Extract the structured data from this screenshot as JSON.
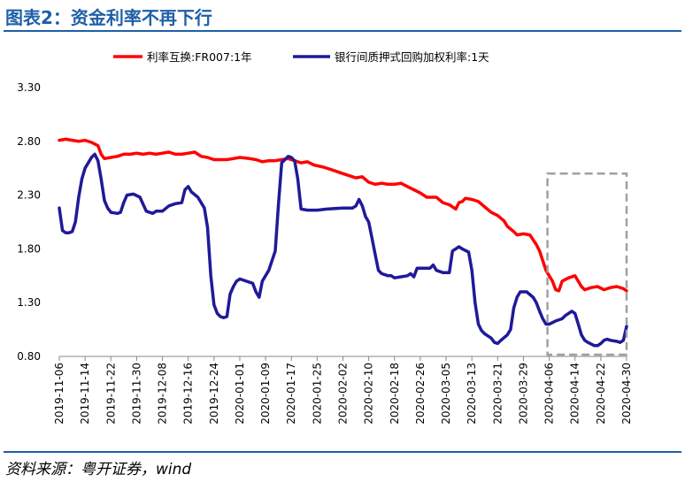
{
  "figure": {
    "title": "图表2：资金利率不再下行",
    "source": "资料来源：粤开证券，wind"
  },
  "chart_data": {
    "type": "line",
    "title": "",
    "xlabel": "",
    "ylabel": "",
    "ylim": [
      0.8,
      3.3
    ],
    "yticks": [
      "3.30",
      "2.80",
      "2.30",
      "1.80",
      "1.30",
      "0.80"
    ],
    "xticks": [
      "2019-11-06",
      "2019-11-14",
      "2019-11-22",
      "2019-11-30",
      "2019-12-08",
      "2019-12-16",
      "2019-12-24",
      "2020-01-01",
      "2020-01-09",
      "2020-01-17",
      "2020-01-25",
      "2020-02-02",
      "2020-02-10",
      "2020-02-18",
      "2020-02-26",
      "2020-03-05",
      "2020-03-13",
      "2020-03-21",
      "2020-03-29",
      "2020-04-06",
      "2020-04-14",
      "2020-04-22",
      "2020-04-30"
    ],
    "legend_position": "top",
    "highlight": {
      "from": "2020-04-06",
      "to": "2020-04-30",
      "ymin": 0.8,
      "ymax": 2.5,
      "style": "dashed-box"
    },
    "series": [
      {
        "name": "利率互换:FR007:1年",
        "color": "#ff0000",
        "points": [
          [
            "2019-11-06",
            2.81
          ],
          [
            "2019-11-08",
            2.82
          ],
          [
            "2019-11-10",
            2.81
          ],
          [
            "2019-11-12",
            2.8
          ],
          [
            "2019-11-14",
            2.81
          ],
          [
            "2019-11-16",
            2.79
          ],
          [
            "2019-11-18",
            2.76
          ],
          [
            "2019-11-19",
            2.68
          ],
          [
            "2019-11-20",
            2.64
          ],
          [
            "2019-11-22",
            2.65
          ],
          [
            "2019-11-24",
            2.66
          ],
          [
            "2019-11-26",
            2.68
          ],
          [
            "2019-11-28",
            2.68
          ],
          [
            "2019-11-30",
            2.69
          ],
          [
            "2019-12-02",
            2.68
          ],
          [
            "2019-12-04",
            2.69
          ],
          [
            "2019-12-06",
            2.68
          ],
          [
            "2019-12-08",
            2.69
          ],
          [
            "2019-12-10",
            2.7
          ],
          [
            "2019-12-12",
            2.68
          ],
          [
            "2019-12-14",
            2.68
          ],
          [
            "2019-12-16",
            2.69
          ],
          [
            "2019-12-18",
            2.7
          ],
          [
            "2019-12-20",
            2.66
          ],
          [
            "2019-12-22",
            2.65
          ],
          [
            "2019-12-24",
            2.63
          ],
          [
            "2019-12-26",
            2.63
          ],
          [
            "2019-12-28",
            2.63
          ],
          [
            "2019-12-30",
            2.64
          ],
          [
            "2020-01-01",
            2.65
          ],
          [
            "2020-01-04",
            2.64
          ],
          [
            "2020-01-06",
            2.63
          ],
          [
            "2020-01-08",
            2.61
          ],
          [
            "2020-01-10",
            2.62
          ],
          [
            "2020-01-12",
            2.62
          ],
          [
            "2020-01-14",
            2.63
          ],
          [
            "2020-01-16",
            2.64
          ],
          [
            "2020-01-18",
            2.62
          ],
          [
            "2020-01-20",
            2.6
          ],
          [
            "2020-01-22",
            2.61
          ],
          [
            "2020-01-24",
            2.58
          ],
          [
            "2020-01-27",
            2.56
          ],
          [
            "2020-01-30",
            2.53
          ],
          [
            "2020-02-02",
            2.5
          ],
          [
            "2020-02-04",
            2.48
          ],
          [
            "2020-02-06",
            2.46
          ],
          [
            "2020-02-08",
            2.47
          ],
          [
            "2020-02-10",
            2.42
          ],
          [
            "2020-02-12",
            2.4
          ],
          [
            "2020-02-14",
            2.41
          ],
          [
            "2020-02-16",
            2.4
          ],
          [
            "2020-02-18",
            2.4
          ],
          [
            "2020-02-20",
            2.41
          ],
          [
            "2020-02-22",
            2.38
          ],
          [
            "2020-02-24",
            2.35
          ],
          [
            "2020-02-26",
            2.32
          ],
          [
            "2020-02-28",
            2.28
          ],
          [
            "2020-03-01",
            2.28
          ],
          [
            "2020-03-02",
            2.28
          ],
          [
            "2020-03-04",
            2.23
          ],
          [
            "2020-03-06",
            2.21
          ],
          [
            "2020-03-08",
            2.17
          ],
          [
            "2020-03-09",
            2.23
          ],
          [
            "2020-03-10",
            2.24
          ],
          [
            "2020-03-11",
            2.27
          ],
          [
            "2020-03-13",
            2.26
          ],
          [
            "2020-03-15",
            2.24
          ],
          [
            "2020-03-17",
            2.19
          ],
          [
            "2020-03-19",
            2.14
          ],
          [
            "2020-03-21",
            2.11
          ],
          [
            "2020-03-23",
            2.06
          ],
          [
            "2020-03-24",
            2.01
          ],
          [
            "2020-03-26",
            1.96
          ],
          [
            "2020-03-27",
            1.93
          ],
          [
            "2020-03-29",
            1.94
          ],
          [
            "2020-03-31",
            1.93
          ],
          [
            "2020-04-02",
            1.84
          ],
          [
            "2020-04-03",
            1.78
          ],
          [
            "2020-04-05",
            1.6
          ],
          [
            "2020-04-07",
            1.5
          ],
          [
            "2020-04-08",
            1.42
          ],
          [
            "2020-04-09",
            1.41
          ],
          [
            "2020-04-10",
            1.5
          ],
          [
            "2020-04-12",
            1.53
          ],
          [
            "2020-04-14",
            1.55
          ],
          [
            "2020-04-16",
            1.45
          ],
          [
            "2020-04-17",
            1.42
          ],
          [
            "2020-04-19",
            1.44
          ],
          [
            "2020-04-21",
            1.45
          ],
          [
            "2020-04-23",
            1.42
          ],
          [
            "2020-04-25",
            1.44
          ],
          [
            "2020-04-27",
            1.45
          ],
          [
            "2020-04-29",
            1.43
          ],
          [
            "2020-04-30",
            1.41
          ]
        ]
      },
      {
        "name": "银行间质押式回购加权利率:1天",
        "color": "#1f1a99",
        "points": [
          [
            "2019-11-06",
            2.18
          ],
          [
            "2019-11-07",
            1.97
          ],
          [
            "2019-11-08",
            1.95
          ],
          [
            "2019-11-09",
            1.95
          ],
          [
            "2019-11-10",
            1.96
          ],
          [
            "2019-11-11",
            2.05
          ],
          [
            "2019-11-12",
            2.28
          ],
          [
            "2019-11-13",
            2.45
          ],
          [
            "2019-11-14",
            2.55
          ],
          [
            "2019-11-16",
            2.65
          ],
          [
            "2019-11-17",
            2.68
          ],
          [
            "2019-11-18",
            2.62
          ],
          [
            "2019-11-19",
            2.45
          ],
          [
            "2019-11-20",
            2.25
          ],
          [
            "2019-11-21",
            2.18
          ],
          [
            "2019-11-22",
            2.14
          ],
          [
            "2019-11-24",
            2.13
          ],
          [
            "2019-11-25",
            2.14
          ],
          [
            "2019-11-26",
            2.23
          ],
          [
            "2019-11-27",
            2.3
          ],
          [
            "2019-11-29",
            2.31
          ],
          [
            "2019-12-01",
            2.28
          ],
          [
            "2019-12-03",
            2.15
          ],
          [
            "2019-12-05",
            2.13
          ],
          [
            "2019-12-06",
            2.15
          ],
          [
            "2019-12-08",
            2.15
          ],
          [
            "2019-12-10",
            2.2
          ],
          [
            "2019-12-12",
            2.22
          ],
          [
            "2019-12-14",
            2.23
          ],
          [
            "2019-12-15",
            2.35
          ],
          [
            "2019-12-16",
            2.38
          ],
          [
            "2019-12-17",
            2.33
          ],
          [
            "2019-12-19",
            2.28
          ],
          [
            "2019-12-21",
            2.18
          ],
          [
            "2019-12-22",
            2.0
          ],
          [
            "2019-12-23",
            1.55
          ],
          [
            "2019-12-24",
            1.28
          ],
          [
            "2019-12-25",
            1.2
          ],
          [
            "2019-12-26",
            1.17
          ],
          [
            "2019-12-27",
            1.16
          ],
          [
            "2019-12-28",
            1.17
          ],
          [
            "2019-12-29",
            1.38
          ],
          [
            "2019-12-30",
            1.45
          ],
          [
            "2019-12-31",
            1.5
          ],
          [
            "2020-01-01",
            1.52
          ],
          [
            "2020-01-03",
            1.5
          ],
          [
            "2020-01-05",
            1.48
          ],
          [
            "2020-01-06",
            1.4
          ],
          [
            "2020-01-07",
            1.35
          ],
          [
            "2020-01-08",
            1.5
          ],
          [
            "2020-01-10",
            1.6
          ],
          [
            "2020-01-12",
            1.78
          ],
          [
            "2020-01-13",
            2.22
          ],
          [
            "2020-01-14",
            2.6
          ],
          [
            "2020-01-16",
            2.66
          ],
          [
            "2020-01-17",
            2.65
          ],
          [
            "2020-01-18",
            2.62
          ],
          [
            "2020-01-19",
            2.45
          ],
          [
            "2020-01-20",
            2.17
          ],
          [
            "2020-01-22",
            2.16
          ],
          [
            "2020-01-25",
            2.16
          ],
          [
            "2020-01-28",
            2.17
          ],
          [
            "2020-02-02",
            2.18
          ],
          [
            "2020-02-05",
            2.18
          ],
          [
            "2020-02-06",
            2.2
          ],
          [
            "2020-02-07",
            2.26
          ],
          [
            "2020-02-08",
            2.2
          ],
          [
            "2020-02-09",
            2.1
          ],
          [
            "2020-02-10",
            2.05
          ],
          [
            "2020-02-11",
            1.9
          ],
          [
            "2020-02-12",
            1.75
          ],
          [
            "2020-02-13",
            1.6
          ],
          [
            "2020-02-14",
            1.57
          ],
          [
            "2020-02-16",
            1.55
          ],
          [
            "2020-02-17",
            1.55
          ],
          [
            "2020-02-18",
            1.53
          ],
          [
            "2020-02-20",
            1.54
          ],
          [
            "2020-02-22",
            1.55
          ],
          [
            "2020-02-23",
            1.57
          ],
          [
            "2020-02-24",
            1.54
          ],
          [
            "2020-02-25",
            1.62
          ],
          [
            "2020-02-27",
            1.62
          ],
          [
            "2020-02-29",
            1.62
          ],
          [
            "2020-03-01",
            1.65
          ],
          [
            "2020-03-02",
            1.6
          ],
          [
            "2020-03-04",
            1.58
          ],
          [
            "2020-03-06",
            1.58
          ],
          [
            "2020-03-07",
            1.78
          ],
          [
            "2020-03-09",
            1.82
          ],
          [
            "2020-03-10",
            1.8
          ],
          [
            "2020-03-12",
            1.77
          ],
          [
            "2020-03-13",
            1.6
          ],
          [
            "2020-03-14",
            1.3
          ],
          [
            "2020-03-15",
            1.1
          ],
          [
            "2020-03-16",
            1.04
          ],
          [
            "2020-03-17",
            1.01
          ],
          [
            "2020-03-19",
            0.97
          ],
          [
            "2020-03-20",
            0.93
          ],
          [
            "2020-03-21",
            0.92
          ],
          [
            "2020-03-22",
            0.95
          ],
          [
            "2020-03-24",
            1.0
          ],
          [
            "2020-03-25",
            1.05
          ],
          [
            "2020-03-26",
            1.25
          ],
          [
            "2020-03-27",
            1.35
          ],
          [
            "2020-03-28",
            1.4
          ],
          [
            "2020-03-30",
            1.4
          ],
          [
            "2020-04-01",
            1.35
          ],
          [
            "2020-04-02",
            1.3
          ],
          [
            "2020-04-03",
            1.22
          ],
          [
            "2020-04-04",
            1.15
          ],
          [
            "2020-04-05",
            1.1
          ],
          [
            "2020-04-06",
            1.1
          ],
          [
            "2020-04-08",
            1.13
          ],
          [
            "2020-04-10",
            1.15
          ],
          [
            "2020-04-11",
            1.18
          ],
          [
            "2020-04-12",
            1.2
          ],
          [
            "2020-04-13",
            1.22
          ],
          [
            "2020-04-14",
            1.2
          ],
          [
            "2020-04-15",
            1.1
          ],
          [
            "2020-04-16",
            1.0
          ],
          [
            "2020-04-17",
            0.95
          ],
          [
            "2020-04-18",
            0.93
          ],
          [
            "2020-04-20",
            0.9
          ],
          [
            "2020-04-21",
            0.9
          ],
          [
            "2020-04-22",
            0.92
          ],
          [
            "2020-04-23",
            0.95
          ],
          [
            "2020-04-24",
            0.96
          ],
          [
            "2020-04-25",
            0.95
          ],
          [
            "2020-04-27",
            0.94
          ],
          [
            "2020-04-28",
            0.93
          ],
          [
            "2020-04-29",
            0.95
          ],
          [
            "2020-04-30",
            1.08
          ]
        ]
      }
    ]
  }
}
